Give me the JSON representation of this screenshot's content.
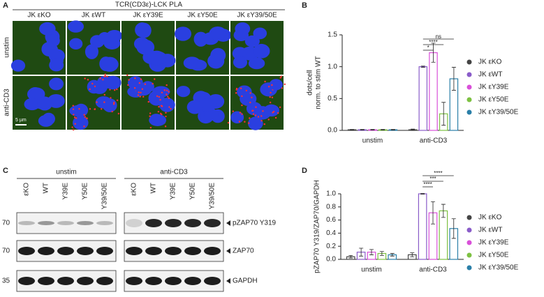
{
  "panel_a": {
    "letter": "A",
    "title": "TCR(CD3ε)-LCK PLA",
    "columns": [
      "JK εKO",
      "JK εWT",
      "JK εY39E",
      "JK εY50E",
      "JK εY39/50E"
    ],
    "rows": [
      "unstim",
      "anti-CD3"
    ],
    "scale_bar": "5 µm"
  },
  "chart_data": [
    {
      "letter": "B",
      "type": "bar",
      "ylabel": [
        "dots/cell",
        "norm. to stim  WT"
      ],
      "categories": [
        "unstim",
        "anti-CD3"
      ],
      "series": [
        {
          "name": "JK εKO",
          "color": "#444444",
          "values": [
            0.01,
            0.01
          ],
          "errors": [
            0.005,
            0.01
          ]
        },
        {
          "name": "JK εWT",
          "color": "#8a5cc9",
          "values": [
            0.01,
            1.0
          ],
          "errors": [
            0.005,
            0.01
          ]
        },
        {
          "name": "JK εY39E",
          "color": "#d94fd9",
          "values": [
            0.01,
            1.22
          ],
          "errors": [
            0.005,
            0.15
          ]
        },
        {
          "name": "JK εY50E",
          "color": "#7dc142",
          "values": [
            0.01,
            0.26
          ],
          "errors": [
            0.005,
            0.18
          ]
        },
        {
          "name": "JK εY39/50E",
          "color": "#2a7fa8",
          "values": [
            0.01,
            0.81
          ],
          "errors": [
            0.005,
            0.18
          ]
        }
      ],
      "ylim": [
        0,
        1.5
      ],
      "yticks": [
        {
          "value": 0,
          "label": "0.0"
        },
        0.5,
        {
          "value": 1,
          "label": "1.0"
        },
        1.5
      ],
      "annotations": [
        "*",
        "****",
        "ns"
      ]
    },
    {
      "letter": "D",
      "type": "bar",
      "ylabel": [
        "pZAP70 Y319/ZAP70/GAPDH"
      ],
      "categories": [
        "unstim",
        "anti-CD3"
      ],
      "series": [
        {
          "name": "JK εKO",
          "color": "#444444",
          "values": [
            0.04,
            0.07
          ],
          "errors": [
            0.02,
            0.03
          ]
        },
        {
          "name": "JK εWT",
          "color": "#8a5cc9",
          "values": [
            0.11,
            1.0
          ],
          "errors": [
            0.06,
            0.005
          ]
        },
        {
          "name": "JK εY39E",
          "color": "#d94fd9",
          "values": [
            0.11,
            0.71
          ],
          "errors": [
            0.04,
            0.17
          ]
        },
        {
          "name": "JK εY50E",
          "color": "#7dc142",
          "values": [
            0.09,
            0.74
          ],
          "errors": [
            0.03,
            0.1
          ]
        },
        {
          "name": "JK εY39/50E",
          "color": "#2a7fa8",
          "values": [
            0.07,
            0.47
          ],
          "errors": [
            0.02,
            0.15
          ]
        }
      ],
      "ylim": [
        0,
        1.0
      ],
      "yticks": [
        {
          "value": 0,
          "label": "0.0"
        },
        0.2,
        0.4,
        0.6,
        0.8,
        {
          "value": 1,
          "label": "1.0"
        }
      ],
      "annotations": [
        "****",
        "***",
        "****"
      ]
    }
  ],
  "panel_c": {
    "letter": "C",
    "groups": [
      "unstim",
      "anti-CD3"
    ],
    "lanes": [
      "εKO",
      "WT",
      "Y39E",
      "Y50E",
      "Y39/50E"
    ],
    "markers": [
      "70",
      "70",
      "35"
    ],
    "bands": [
      "pZAP70 Y319",
      "ZAP70",
      "GAPDH"
    ]
  }
}
